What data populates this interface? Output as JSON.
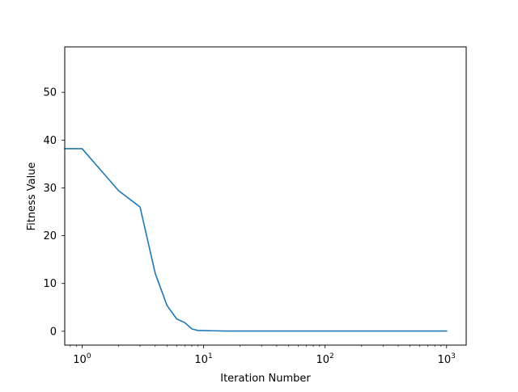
{
  "chart_data": {
    "type": "line",
    "title": "",
    "xlabel": "Iteration Number",
    "ylabel": "Fitness Value",
    "xscale": "log",
    "xlim": [
      0.72,
      1450
    ],
    "ylim": [
      -2.9,
      59.5
    ],
    "grid": false,
    "legend": "none",
    "x_ticks": [
      {
        "value": 1,
        "base": "10",
        "exp": "0"
      },
      {
        "value": 10,
        "base": "10",
        "exp": "1"
      },
      {
        "value": 100,
        "base": "10",
        "exp": "2"
      },
      {
        "value": 1000,
        "base": "10",
        "exp": "3"
      }
    ],
    "y_ticks": [
      0,
      10,
      20,
      30,
      40,
      50
    ],
    "series": [
      {
        "color": "#1f77b4",
        "x": [
          0.72,
          1,
          2,
          3,
          4,
          5,
          6,
          7,
          8,
          9,
          10,
          12,
          15,
          20,
          30,
          50,
          100,
          200,
          500,
          1000
        ],
        "y": [
          38.2,
          38.2,
          29.4,
          26,
          12.1,
          5.4,
          2.6,
          1.8,
          0.5,
          0.15,
          0.15,
          0.1,
          0.05,
          0.05,
          0.05,
          0.05,
          0.05,
          0.05,
          0.05,
          0.05
        ]
      }
    ]
  }
}
